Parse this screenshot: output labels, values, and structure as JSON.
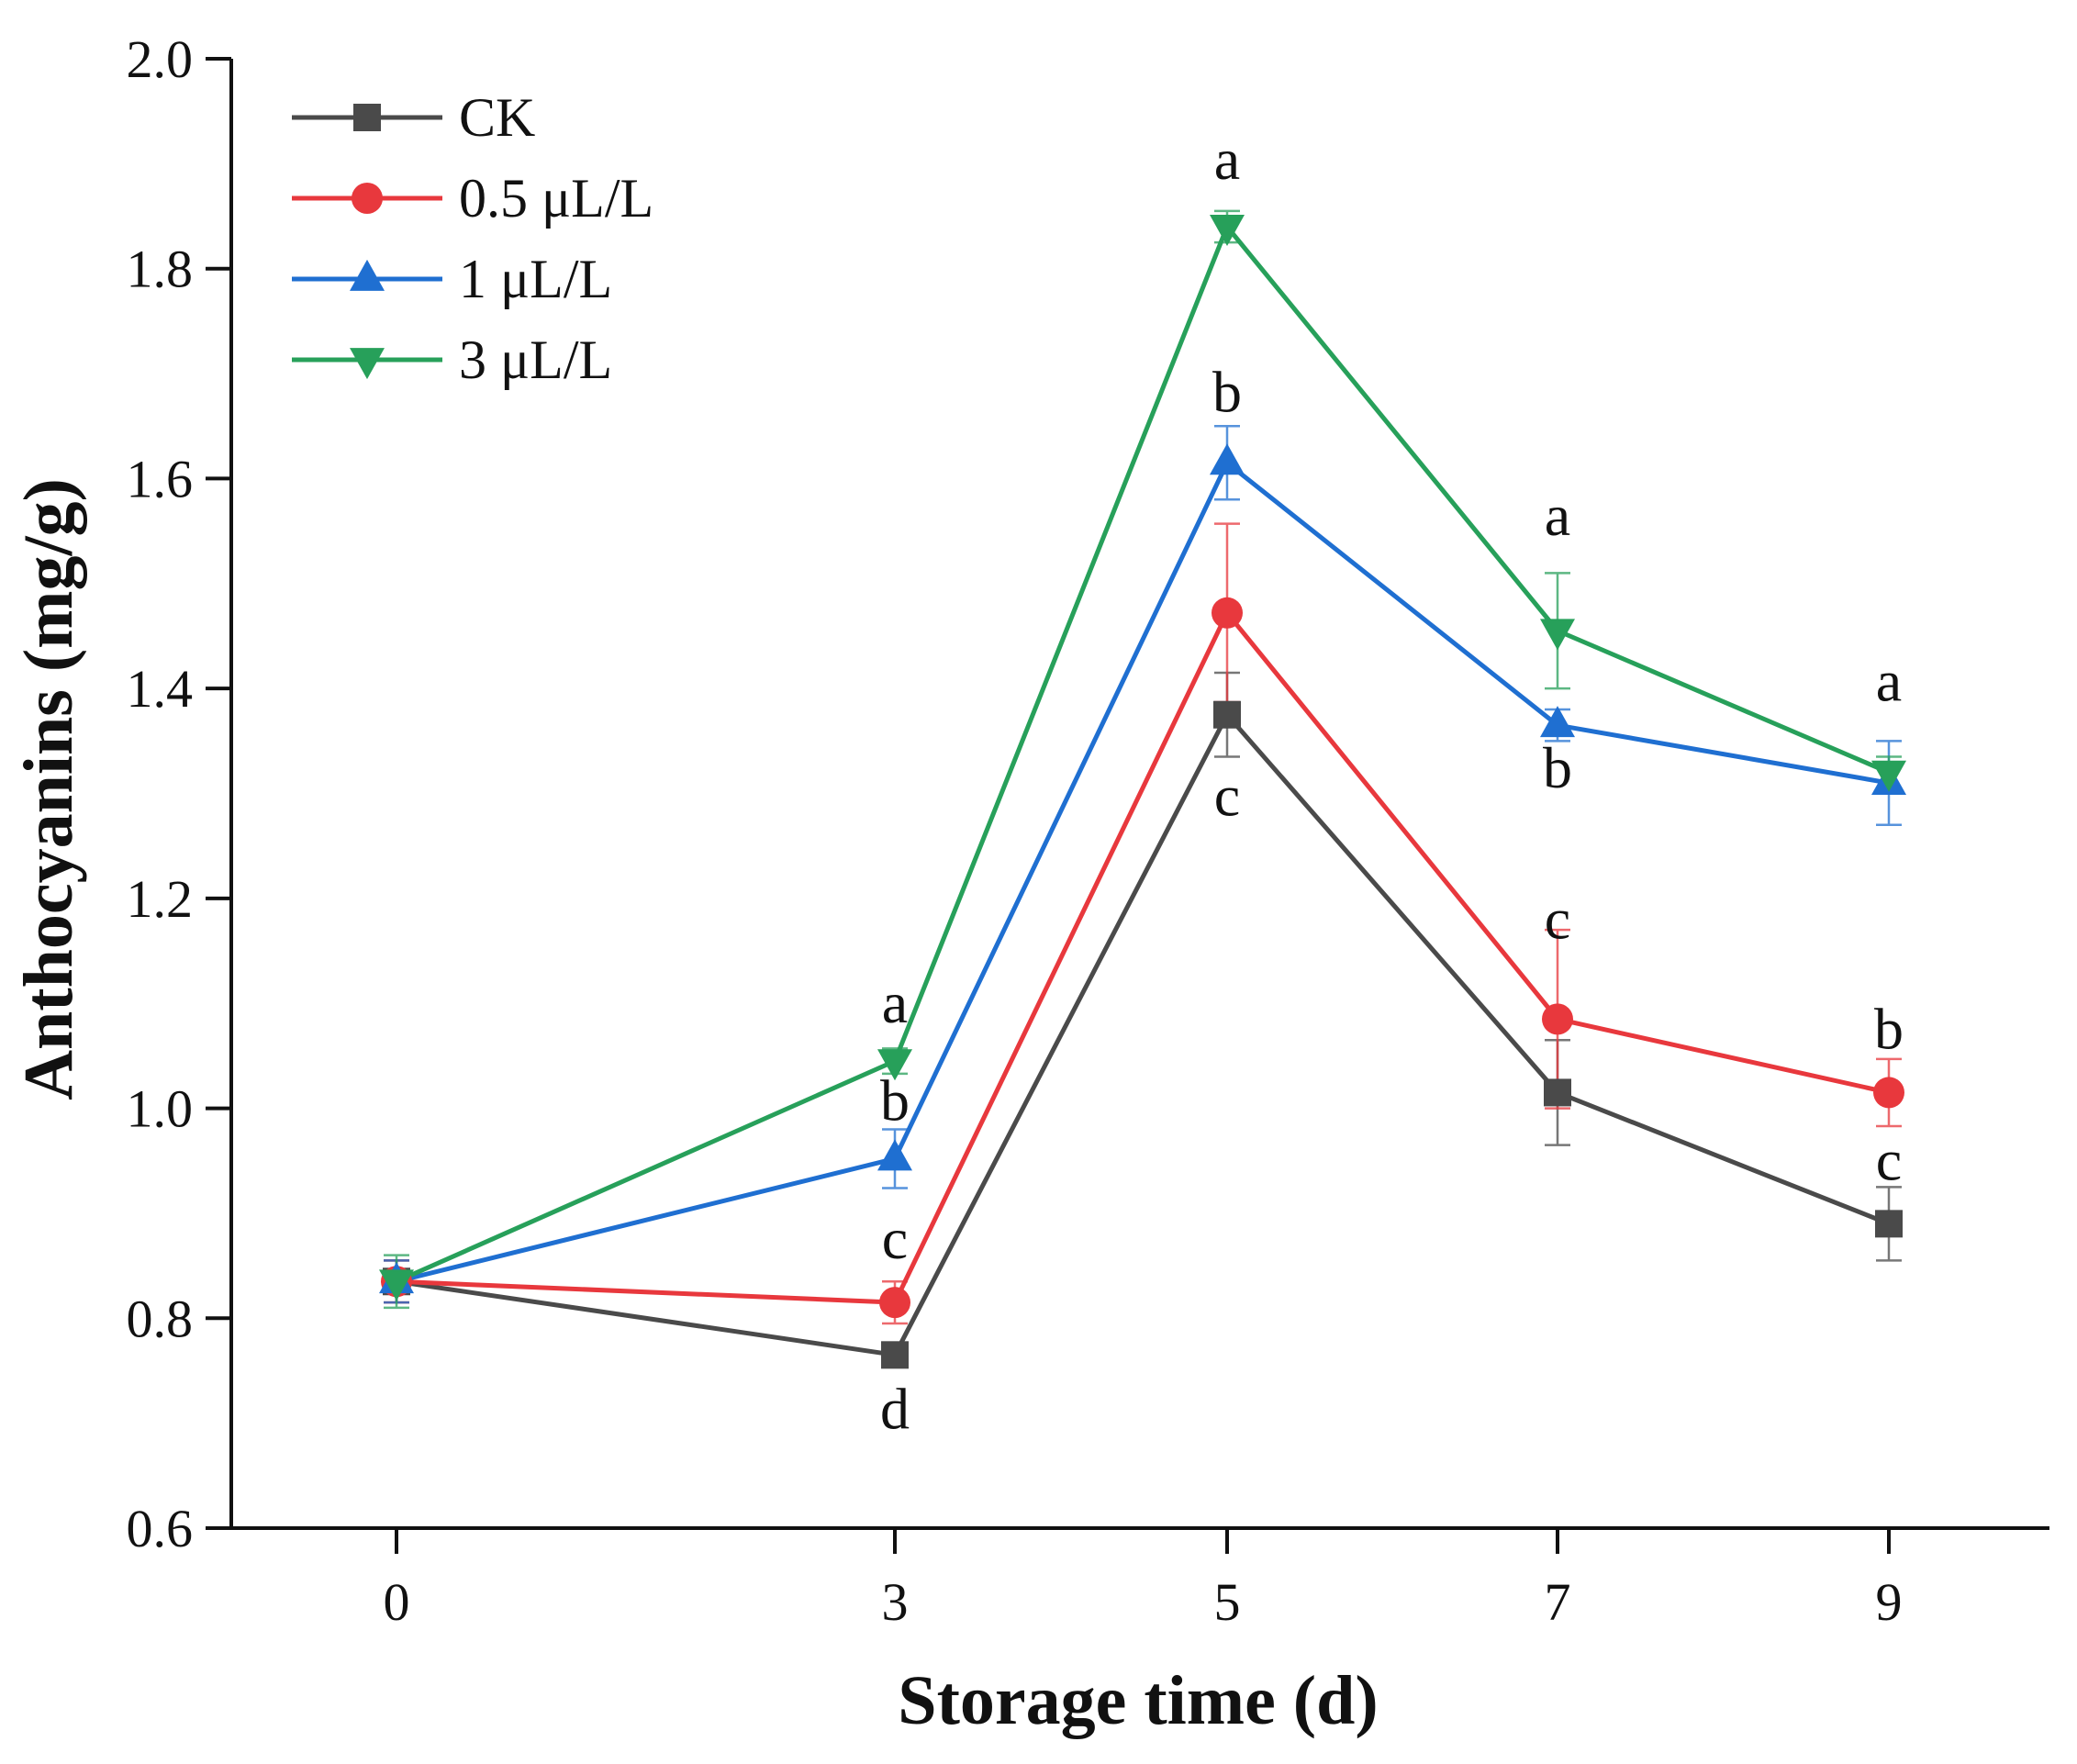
{
  "chart_data": {
    "type": "line",
    "xlabel": "Storage time (d)",
    "ylabel": "Anthocyanins (mg/g)",
    "ylim": [
      0.6,
      2.0
    ],
    "yticks": [
      "0.6",
      "0.8",
      "1.0",
      "1.2",
      "1.4",
      "1.6",
      "1.8",
      "2.0"
    ],
    "x": [
      0,
      3,
      5,
      7,
      9
    ],
    "xticks": [
      "0",
      "3",
      "5",
      "7",
      "9"
    ],
    "grid": false,
    "legend_position": "top-left",
    "series": [
      {
        "name": "CK",
        "color": "#4a4a4a",
        "marker": "square",
        "values": [
          0.835,
          0.765,
          1.375,
          1.015,
          0.89
        ],
        "errors": [
          0.02,
          0.01,
          0.04,
          0.05,
          0.035
        ],
        "labels": [
          "",
          "d",
          "c",
          "",
          "c"
        ]
      },
      {
        "name": "0.5 μL/L",
        "color": "#e8383d",
        "marker": "circle",
        "values": [
          0.835,
          0.815,
          1.472,
          1.085,
          1.015
        ],
        "errors": [
          0.02,
          0.02,
          0.085,
          0.085,
          0.032
        ],
        "labels": [
          "",
          "c",
          "",
          "c",
          "b"
        ]
      },
      {
        "name": "1 μL/L",
        "color": "#1f6fd1",
        "marker": "triangle-up",
        "values": [
          0.835,
          0.952,
          1.615,
          1.365,
          1.31
        ],
        "errors": [
          0.02,
          0.028,
          0.035,
          0.015,
          0.04
        ],
        "labels": [
          "",
          "b",
          "b",
          "b",
          ""
        ]
      },
      {
        "name": "3 μL/L",
        "color": "#27a05a",
        "marker": "triangle-down",
        "values": [
          0.835,
          1.045,
          1.84,
          1.455,
          1.32
        ],
        "errors": [
          0.025,
          0.012,
          0.015,
          0.055,
          0.015
        ],
        "labels": [
          "",
          "a",
          "a",
          "a",
          "a"
        ]
      }
    ]
  }
}
